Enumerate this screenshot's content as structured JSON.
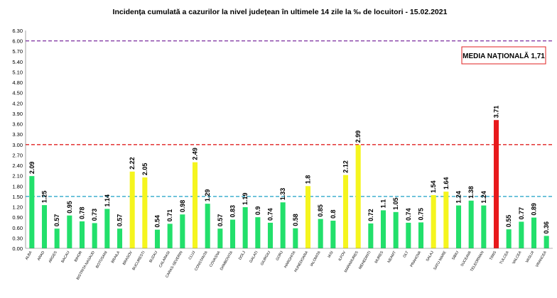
{
  "chart_data": {
    "type": "bar",
    "title": "Incidența cumulată a cazurilor la nivel județean în ultimele 14 zile la ‰ de locuitori - 15.02.2021",
    "xlabel": "",
    "ylabel": "",
    "ylim": [
      0,
      6.3
    ],
    "yticks": [
      "0.00",
      "0.30",
      "0.60",
      "0.90",
      "1.20",
      "1.50",
      "1.80",
      "2.10",
      "2.40",
      "2.70",
      "3.00",
      "3.30",
      "3.60",
      "3.90",
      "4.20",
      "4.50",
      "4.80",
      "5.10",
      "5.40",
      "5.70",
      "6.00",
      "6.30"
    ],
    "grid": false,
    "categories": [
      "ALBA",
      "ARAD",
      "ARGES",
      "BACAU",
      "BIHOR",
      "BISTRITA NASAUD",
      "BOTOSANI",
      "BRAILA",
      "BRASOV",
      "BUCURESTI",
      "BUZAU",
      "CALARASI",
      "CARAS-SEVERIN",
      "CLUJ",
      "CONSTANTA",
      "COVASNA",
      "DAMBOVITA",
      "DOLJ",
      "GALATI",
      "GIURGIU",
      "GORJ",
      "HARGHITA",
      "HUNEDOARA",
      "IALOMITA",
      "IASI",
      "ILFOV",
      "MARAMURES",
      "MEHEDINTI",
      "MURES",
      "NEAMT",
      "OLT",
      "PRAHOVA",
      "SALAJ",
      "SATU MARE",
      "SIBIU",
      "SUCEAVA",
      "TELEORMAN",
      "TIMIS",
      "TULCEA",
      "VALCEA",
      "VASLUI",
      "VRANCEA"
    ],
    "values": [
      2.09,
      1.25,
      0.57,
      0.95,
      0.78,
      0.73,
      1.14,
      0.57,
      2.22,
      2.05,
      0.54,
      0.71,
      0.98,
      2.49,
      1.29,
      0.57,
      0.83,
      1.19,
      0.9,
      0.74,
      1.33,
      0.58,
      1.8,
      0.85,
      0.8,
      2.12,
      2.99,
      0.72,
      1.1,
      1.05,
      0.74,
      0.75,
      1.54,
      1.64,
      1.24,
      1.38,
      1.24,
      3.71,
      0.55,
      0.77,
      0.89,
      0.36
    ],
    "value_labels": [
      "2.09",
      "1.25",
      "0.57",
      "0.95",
      "0.78",
      "0.73",
      "1.14",
      "0.57",
      "2.22",
      "2.05",
      "0.54",
      "0.71",
      "0.98",
      "2.49",
      "1.29",
      "0.57",
      "0.83",
      "1.19",
      "0.9",
      "0.74",
      "1.33",
      "0.58",
      "1.8",
      "0.85",
      "0.8",
      "2.12",
      "2.99",
      "0.72",
      "1.1",
      "1.05",
      "0.74",
      "0.75",
      "1.54",
      "1.64",
      "1.24",
      "1.38",
      "1.24",
      "3.71",
      "0.55",
      "0.77",
      "0.89",
      "0.36"
    ],
    "bar_levels": [
      "green",
      "green",
      "green",
      "green",
      "green",
      "green",
      "green",
      "green",
      "yellow",
      "yellow",
      "green",
      "green",
      "green",
      "yellow",
      "green",
      "green",
      "green",
      "green",
      "green",
      "green",
      "green",
      "green",
      "yellow",
      "green",
      "green",
      "yellow",
      "yellow",
      "green",
      "green",
      "green",
      "green",
      "green",
      "yellow",
      "yellow",
      "green",
      "green",
      "green",
      "red",
      "green",
      "green",
      "green",
      "green"
    ],
    "reference_lines": [
      {
        "value": 6.0,
        "color": "#7B2C9E"
      },
      {
        "value": 3.0,
        "color": "#E02020"
      },
      {
        "value": 1.5,
        "color": "#1BA1C6"
      }
    ],
    "annotation": {
      "label": "MEDIA NAȚIONALĂ",
      "value": "1,71",
      "border_color": "#E02020"
    },
    "colors": {
      "green": "#22E06B",
      "yellow": "#F5F51E",
      "red": "#E8191C",
      "axis": "#666666",
      "text": "#000000"
    }
  }
}
